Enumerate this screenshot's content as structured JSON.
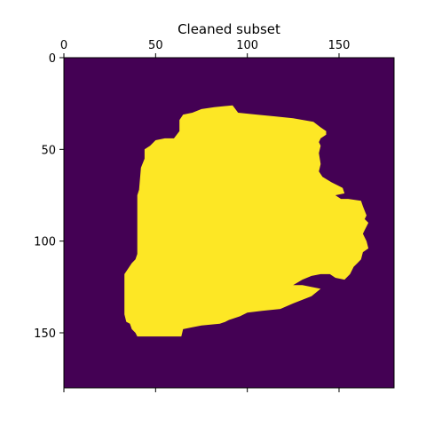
{
  "chart_data": {
    "type": "heatmap",
    "title": "Cleaned subset",
    "xlabel": "",
    "ylabel": "",
    "xlim": [
      0,
      180
    ],
    "ylim": [
      180,
      0
    ],
    "x_axis_position": "top",
    "x_ticks": [
      0,
      50,
      100,
      150
    ],
    "y_ticks": [
      0,
      50,
      100,
      150
    ],
    "x_tick_labels": [
      "0",
      "50",
      "100",
      "150"
    ],
    "y_tick_labels": [
      "0",
      "50",
      "100",
      "150"
    ],
    "grid": false,
    "legend": "none",
    "colors": {
      "background": "#440154",
      "foreground": "#fde725"
    },
    "values_description_free": true,
    "mask_outline_data_units": [
      [
        63,
        34
      ],
      [
        65,
        31
      ],
      [
        70,
        30
      ],
      [
        75,
        28
      ],
      [
        82,
        27
      ],
      [
        92,
        26
      ],
      [
        95,
        30
      ],
      [
        105,
        31
      ],
      [
        115,
        32
      ],
      [
        125,
        33
      ],
      [
        136,
        35
      ],
      [
        140,
        38
      ],
      [
        143,
        40
      ],
      [
        143,
        42
      ],
      [
        140,
        44
      ],
      [
        139,
        46
      ],
      [
        140,
        48
      ],
      [
        139,
        52
      ],
      [
        140,
        58
      ],
      [
        139,
        62
      ],
      [
        141,
        65
      ],
      [
        146,
        68
      ],
      [
        152,
        71
      ],
      [
        153,
        74
      ],
      [
        148,
        75
      ],
      [
        151,
        77
      ],
      [
        155,
        77
      ],
      [
        162,
        78
      ],
      [
        163,
        81
      ],
      [
        165,
        86
      ],
      [
        164,
        88
      ],
      [
        166,
        90
      ],
      [
        164,
        94
      ],
      [
        163,
        96
      ],
      [
        165,
        100
      ],
      [
        166,
        104
      ],
      [
        163,
        106
      ],
      [
        162,
        110
      ],
      [
        160,
        112
      ],
      [
        158,
        114
      ],
      [
        156,
        118
      ],
      [
        153,
        121
      ],
      [
        148,
        120
      ],
      [
        145,
        118
      ],
      [
        140,
        118
      ],
      [
        135,
        119
      ],
      [
        130,
        121
      ],
      [
        125,
        124
      ],
      [
        130,
        124
      ],
      [
        140,
        126
      ],
      [
        135,
        130
      ],
      [
        125,
        134
      ],
      [
        118,
        137
      ],
      [
        108,
        138
      ],
      [
        100,
        139
      ],
      [
        96,
        141
      ],
      [
        90,
        143
      ],
      [
        88,
        144
      ],
      [
        85,
        145
      ],
      [
        75,
        146
      ],
      [
        70,
        147
      ],
      [
        65,
        148
      ],
      [
        64,
        152
      ],
      [
        62,
        152
      ],
      [
        50,
        152
      ],
      [
        40,
        152
      ],
      [
        39,
        150
      ],
      [
        37,
        148
      ],
      [
        36,
        145
      ],
      [
        34,
        144
      ],
      [
        33,
        140
      ],
      [
        33,
        130
      ],
      [
        33,
        118
      ],
      [
        35,
        115
      ],
      [
        37,
        112
      ],
      [
        39,
        110
      ],
      [
        40,
        107
      ],
      [
        40,
        100
      ],
      [
        40,
        90
      ],
      [
        40,
        80
      ],
      [
        40,
        75
      ],
      [
        41,
        72
      ],
      [
        42,
        60
      ],
      [
        44,
        55
      ],
      [
        44,
        50
      ],
      [
        47,
        48
      ],
      [
        50,
        45
      ],
      [
        55,
        44
      ],
      [
        60,
        44
      ],
      [
        63,
        40
      ],
      [
        63,
        34
      ]
    ]
  }
}
